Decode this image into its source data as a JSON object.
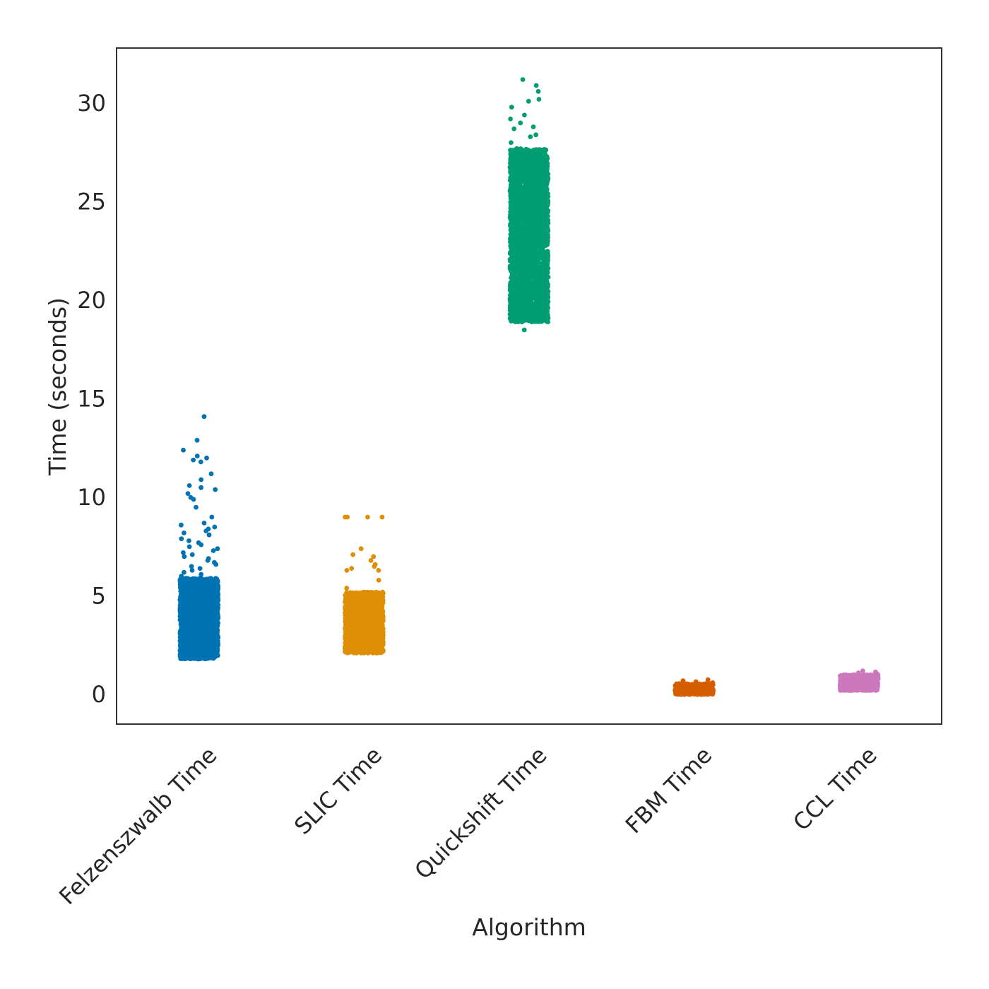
{
  "chart_data": {
    "type": "scatter",
    "subtype": "strip",
    "title": "",
    "xlabel": "Algorithm",
    "ylabel": "Time (seconds)",
    "ylim": [
      -1.5,
      32.8
    ],
    "yticks": [
      0,
      5,
      10,
      15,
      20,
      25,
      30
    ],
    "grid": false,
    "legend": "none",
    "categories": [
      "Felzenszwalb Time",
      "SLIC Time",
      "Quickshift Time",
      "FBM Time",
      "CCL Time"
    ],
    "series": [
      {
        "category": "Felzenszwalb Time",
        "color": "#0173b2",
        "bulk": {
          "min": 1.8,
          "max": 5.9,
          "count": 2200
        },
        "outliers": [
          14.1,
          12.9,
          12.4,
          12.1,
          12.0,
          11.9,
          11.8,
          11.2,
          10.9,
          10.6,
          10.5,
          10.4,
          10.2,
          10.0,
          9.9,
          9.5,
          9.0,
          8.7,
          8.6,
          8.5,
          8.4,
          8.3,
          8.2,
          8.1,
          7.9,
          7.8,
          7.7,
          7.6,
          7.5,
          7.4,
          7.3,
          7.2,
          7.1,
          7.0,
          6.9,
          6.8,
          6.7,
          6.6,
          6.5,
          6.4,
          6.3,
          6.2,
          6.1,
          6.0
        ]
      },
      {
        "category": "SLIC Time",
        "color": "#de8f05",
        "bulk": {
          "min": 2.1,
          "max": 5.2,
          "count": 2000
        },
        "outliers": [
          9.0,
          9.0,
          9.0,
          9.0,
          7.4,
          7.1,
          7.0,
          6.8,
          6.6,
          6.5,
          6.4,
          6.3,
          6.3,
          5.8,
          5.4
        ]
      },
      {
        "category": "Quickshift Time",
        "color": "#029e73",
        "bulk": {
          "min": 18.9,
          "max": 27.7,
          "count": 2600
        },
        "outliers": [
          31.2,
          30.9,
          30.6,
          30.2,
          30.1,
          29.8,
          29.4,
          29.2,
          29.0,
          28.8,
          28.7,
          28.4,
          28.3,
          28.0,
          18.5
        ]
      },
      {
        "category": "FBM Time",
        "color": "#d55e00",
        "bulk": {
          "min": 0.0,
          "max": 0.55,
          "count": 700
        },
        "outliers": [
          0.7,
          0.75,
          0.65,
          0.6
        ]
      },
      {
        "category": "CCL Time",
        "color": "#cc78bc",
        "bulk": {
          "min": 0.2,
          "max": 1.0,
          "count": 800
        },
        "outliers": [
          1.2,
          1.15,
          1.1,
          1.05
        ]
      }
    ]
  }
}
